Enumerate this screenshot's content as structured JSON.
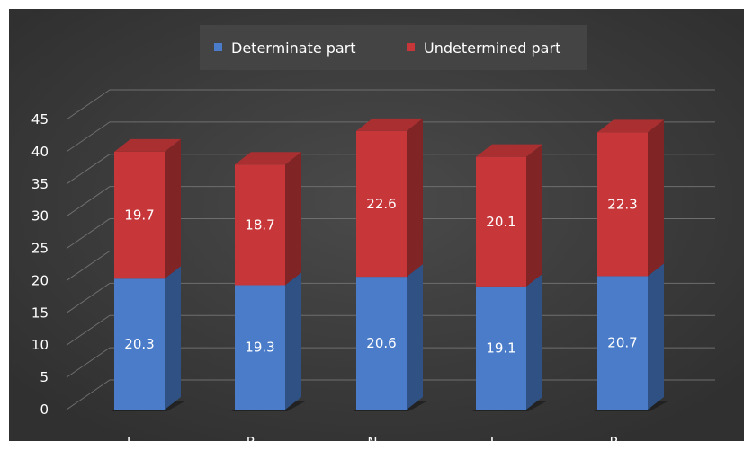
{
  "chart_data": {
    "type": "bar",
    "stacked": true,
    "style": "3d",
    "categories": [
      "L",
      "R",
      "N",
      "I",
      "P"
    ],
    "series": [
      {
        "name": "Determinate part",
        "values": [
          20.3,
          19.3,
          20.6,
          19.1,
          20.7
        ]
      },
      {
        "name": "Undetermined part",
        "values": [
          19.7,
          18.7,
          22.6,
          20.1,
          22.3
        ]
      }
    ],
    "ylim": [
      0,
      45
    ],
    "yticks": [
      "0",
      "5",
      "10",
      "15",
      "20",
      "25",
      "30",
      "35",
      "40",
      "45"
    ],
    "grid": true,
    "legend": "top-center",
    "colors": {
      "background": "#3c3c3c",
      "series": [
        "#4a7cc9",
        "#c7373a"
      ]
    }
  }
}
